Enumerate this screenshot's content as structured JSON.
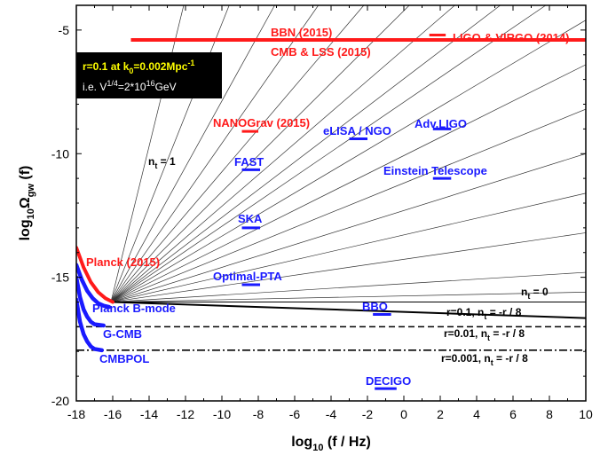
{
  "chart_data": {
    "type": "line",
    "xlabel": {
      "base": "log",
      "sub": "10",
      "rest": " (f / Hz)"
    },
    "ylabel": {
      "pre": "log",
      "sub1": "10",
      "mid": "Ω",
      "sub2": "gw",
      "post": " (f)"
    },
    "xlim": [
      -18,
      10
    ],
    "ylim": [
      -20,
      -4
    ],
    "xticks": [
      -18,
      -16,
      -14,
      -12,
      -10,
      -8,
      -6,
      -4,
      -2,
      0,
      2,
      4,
      6,
      8,
      10
    ],
    "yticks": [
      -20,
      -15,
      -10,
      -5
    ],
    "grid": false,
    "info_box": {
      "line1": {
        "a": "r=0.1 at k",
        "sub": "0",
        "b": "=0.002Mpc",
        "sup": "-1"
      },
      "line2": {
        "a": "i.e. V",
        "sup1": "1/4",
        "b": "=2*10",
        "sup2": "16",
        "c": "GeV"
      },
      "background": "#000000",
      "line1_color": "#ffff00",
      "line2_color": "#ffffff"
    },
    "fan_lines": {
      "description_label": {
        "pre": "n",
        "sub": "t",
        "post": " = 1"
      },
      "pivot": [
        -16.1,
        -16.0
      ],
      "end_points": [
        [
          -12.1,
          -4
        ],
        [
          -9.6,
          -4
        ],
        [
          -7.1,
          -4
        ],
        [
          -4.7,
          -4
        ],
        [
          -2.2,
          -4
        ],
        [
          0.3,
          -4
        ],
        [
          2.8,
          -4
        ],
        [
          5.3,
          -4
        ],
        [
          7.8,
          -4
        ],
        [
          10,
          -4.6
        ],
        [
          10,
          -6.4
        ],
        [
          10,
          -8.2
        ],
        [
          10,
          -10.0
        ],
        [
          10,
          -11.6
        ],
        [
          10,
          -13.2
        ],
        [
          10,
          -14.8
        ],
        [
          10,
          -15.6
        ],
        [
          10,
          -16.0
        ]
      ],
      "color": "#333333"
    },
    "series": [
      {
        "label": {
          "pre": "n",
          "sub": "t",
          "post": " = 0"
        },
        "style": "solid",
        "x": [
          -16,
          10
        ],
        "y": [
          -16.0,
          -16.0
        ]
      },
      {
        "label": {
          "pre": "r=0.1, n",
          "sub": "t",
          "post": " = -r / 8"
        },
        "style": "solid",
        "x": [
          -16,
          10
        ],
        "y": [
          -16.0,
          -16.65
        ]
      },
      {
        "label": {
          "pre": "r=0.01, n",
          "sub": "t",
          "post": " = -r / 8"
        },
        "style": "dash",
        "x": [
          -18,
          10
        ],
        "y": [
          -17.0,
          -17.0
        ]
      },
      {
        "label": {
          "pre": "r=0.001, n",
          "sub": "t",
          "post": " = -r / 8"
        },
        "style": "dashdot",
        "x": [
          -18,
          10
        ],
        "y": [
          -17.95,
          -17.95
        ]
      }
    ],
    "constraints_red": [
      {
        "label": "BBN (2015)",
        "type": "line",
        "x": [
          -15,
          10
        ],
        "y": -5.4
      },
      {
        "label": "CMB & LSS (2015)",
        "type": "line",
        "x": [
          -10,
          10
        ],
        "y": -5.4
      },
      {
        "label": "LIGO & VIRGO (2014)",
        "type": "seg",
        "x": [
          1.4,
          2.3
        ],
        "y": -5.2
      },
      {
        "label": "NANOGrav (2015)",
        "type": "seg",
        "x": [
          -8.9,
          -8.0
        ],
        "y": -9.1
      },
      {
        "label": "Planck (2015)",
        "type": "curve",
        "x": [
          -18,
          -17.6,
          -17.2,
          -16.8,
          -16.4,
          -16.0
        ],
        "y": [
          -13.8,
          -14.6,
          -15.2,
          -15.6,
          -15.85,
          -16.0
        ]
      }
    ],
    "sensitivities_blue": [
      {
        "label": "FAST",
        "x": [
          -8.9,
          -7.9
        ],
        "y": -10.65
      },
      {
        "label": "SKA",
        "x": [
          -8.9,
          -7.9
        ],
        "y": -13.0
      },
      {
        "label": "Optimal-PTA",
        "x": [
          -8.9,
          -7.9
        ],
        "y": -15.3
      },
      {
        "label": "eLISA / NGO",
        "x": [
          -3.0,
          -2.0
        ],
        "y": -9.4
      },
      {
        "label": "Adv.LIGO",
        "x": [
          1.6,
          2.6
        ],
        "y": -9.0
      },
      {
        "label": "Einstein Telescope",
        "x": [
          1.6,
          2.6
        ],
        "y": -11.0
      },
      {
        "label": "BBO",
        "x": [
          -1.7,
          -0.7
        ],
        "y": -16.5
      },
      {
        "label": "DECIGO",
        "x": [
          -1.6,
          -0.4
        ],
        "y": -19.5
      }
    ],
    "cmb_blue": [
      {
        "label": "Planck B-mode",
        "x": [
          -18,
          -17.7,
          -17.4,
          -17.1,
          -16.8,
          -16.5,
          -16.2
        ],
        "y": [
          -14.5,
          -15.1,
          -15.55,
          -15.85,
          -16.05,
          -16.15,
          -16.2
        ]
      },
      {
        "label": "G-CMB",
        "x": [
          -18,
          -17.8,
          -17.6,
          -17.4,
          -17.2,
          -17.0,
          -16.5
        ],
        "y": [
          -15.0,
          -15.8,
          -16.3,
          -16.6,
          -16.8,
          -16.9,
          -16.95
        ]
      },
      {
        "label": "CMBPOL",
        "x": [
          -18,
          -17.8,
          -17.6,
          -17.4,
          -17.2,
          -17.0,
          -16.6
        ],
        "y": [
          -15.9,
          -16.8,
          -17.3,
          -17.6,
          -17.8,
          -17.9,
          -17.95
        ]
      }
    ],
    "colors": {
      "red": "#ff1a1a",
      "blue": "#1a1aff",
      "black": "#000000"
    }
  }
}
